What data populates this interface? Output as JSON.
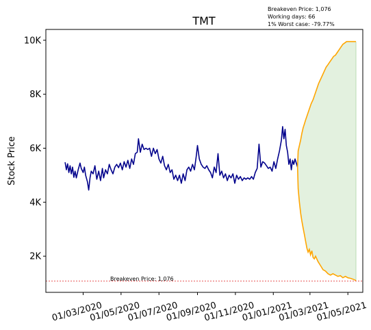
{
  "chart_data": {
    "type": "line",
    "title": "TMT",
    "ylabel": "Stock Price",
    "xlabel": "",
    "xlim": [
      "2020-01-01",
      "2021-05-25"
    ],
    "ylim": [
      660,
      10400
    ],
    "xticks": [
      {
        "date": "2020-03-01",
        "label": "01/03/2020"
      },
      {
        "date": "2020-05-01",
        "label": "01/05/2020"
      },
      {
        "date": "2020-07-01",
        "label": "01/07/2020"
      },
      {
        "date": "2020-09-01",
        "label": "01/09/2020"
      },
      {
        "date": "2020-11-01",
        "label": "01/11/2020"
      },
      {
        "date": "2021-01-01",
        "label": "01/01/2021"
      },
      {
        "date": "2021-03-01",
        "label": "01/03/2021"
      },
      {
        "date": "2021-05-01",
        "label": "01/05/2021"
      }
    ],
    "yticks": [
      {
        "value": 2000,
        "label": "2K"
      },
      {
        "value": 4000,
        "label": "4K"
      },
      {
        "value": 6000,
        "label": "6K"
      },
      {
        "value": 8000,
        "label": "8K"
      },
      {
        "value": 10000,
        "label": "10K"
      }
    ],
    "grid": false,
    "annotations": {
      "info_lines": [
        "Breakeven Price: 1,076",
        "Working days: 66",
        "1% Worst case: -79.77%"
      ],
      "breakeven_label": "Breakeven Price: 1,076"
    },
    "breakeven": 1076,
    "history": {
      "color": "#00008b",
      "points": [
        [
          "2020-02-01",
          5480
        ],
        [
          "2020-02-03",
          5200
        ],
        [
          "2020-02-05",
          5420
        ],
        [
          "2020-02-07",
          5100
        ],
        [
          "2020-02-09",
          5350
        ],
        [
          "2020-02-11",
          5050
        ],
        [
          "2020-02-13",
          5300
        ],
        [
          "2020-02-15",
          4920
        ],
        [
          "2020-02-17",
          5150
        ],
        [
          "2020-02-19",
          4900
        ],
        [
          "2020-02-22",
          5200
        ],
        [
          "2020-02-25",
          5450
        ],
        [
          "2020-02-27",
          5250
        ],
        [
          "2020-03-01",
          5100
        ],
        [
          "2020-03-03",
          5300
        ],
        [
          "2020-03-05",
          5000
        ],
        [
          "2020-03-08",
          4750
        ],
        [
          "2020-03-10",
          4450
        ],
        [
          "2020-03-12",
          4900
        ],
        [
          "2020-03-14",
          5150
        ],
        [
          "2020-03-17",
          5050
        ],
        [
          "2020-03-20",
          5350
        ],
        [
          "2020-03-23",
          4850
        ],
        [
          "2020-03-26",
          5150
        ],
        [
          "2020-03-29",
          4800
        ],
        [
          "2020-04-01",
          5250
        ],
        [
          "2020-04-03",
          4900
        ],
        [
          "2020-04-06",
          5200
        ],
        [
          "2020-04-09",
          5050
        ],
        [
          "2020-04-12",
          5400
        ],
        [
          "2020-04-15",
          5200
        ],
        [
          "2020-04-18",
          5050
        ],
        [
          "2020-04-21",
          5300
        ],
        [
          "2020-04-24",
          5400
        ],
        [
          "2020-04-27",
          5280
        ],
        [
          "2020-04-30",
          5450
        ],
        [
          "2020-05-03",
          5200
        ],
        [
          "2020-05-06",
          5500
        ],
        [
          "2020-05-09",
          5300
        ],
        [
          "2020-05-12",
          5550
        ],
        [
          "2020-05-15",
          5250
        ],
        [
          "2020-05-18",
          5600
        ],
        [
          "2020-05-21",
          5400
        ],
        [
          "2020-05-24",
          5800
        ],
        [
          "2020-05-27",
          5850
        ],
        [
          "2020-05-29",
          6350
        ],
        [
          "2020-06-01",
          5850
        ],
        [
          "2020-06-04",
          6150
        ],
        [
          "2020-06-07",
          5950
        ],
        [
          "2020-06-10",
          6000
        ],
        [
          "2020-06-13",
          5950
        ],
        [
          "2020-06-16",
          6000
        ],
        [
          "2020-06-19",
          5700
        ],
        [
          "2020-06-22",
          6000
        ],
        [
          "2020-06-25",
          5800
        ],
        [
          "2020-06-28",
          5950
        ],
        [
          "2020-07-01",
          5600
        ],
        [
          "2020-07-04",
          5450
        ],
        [
          "2020-07-07",
          5700
        ],
        [
          "2020-07-10",
          5350
        ],
        [
          "2020-07-13",
          5200
        ],
        [
          "2020-07-16",
          5400
        ],
        [
          "2020-07-19",
          5100
        ],
        [
          "2020-07-22",
          5200
        ],
        [
          "2020-07-25",
          4850
        ],
        [
          "2020-07-28",
          5000
        ],
        [
          "2020-07-31",
          4800
        ],
        [
          "2020-08-03",
          5000
        ],
        [
          "2020-08-06",
          4700
        ],
        [
          "2020-08-09",
          5050
        ],
        [
          "2020-08-12",
          4800
        ],
        [
          "2020-08-15",
          5200
        ],
        [
          "2020-08-18",
          5300
        ],
        [
          "2020-08-21",
          5150
        ],
        [
          "2020-08-24",
          5400
        ],
        [
          "2020-08-27",
          5200
        ],
        [
          "2020-08-30",
          5700
        ],
        [
          "2020-09-01",
          6100
        ],
        [
          "2020-09-04",
          5600
        ],
        [
          "2020-09-07",
          5400
        ],
        [
          "2020-09-10",
          5300
        ],
        [
          "2020-09-13",
          5250
        ],
        [
          "2020-09-16",
          5350
        ],
        [
          "2020-09-19",
          5200
        ],
        [
          "2020-09-22",
          5100
        ],
        [
          "2020-09-25",
          4900
        ],
        [
          "2020-09-28",
          5300
        ],
        [
          "2020-10-01",
          5100
        ],
        [
          "2020-10-04",
          5800
        ],
        [
          "2020-10-07",
          5000
        ],
        [
          "2020-10-10",
          5150
        ],
        [
          "2020-10-13",
          4900
        ],
        [
          "2020-10-16",
          5050
        ],
        [
          "2020-10-19",
          4800
        ],
        [
          "2020-10-22",
          5000
        ],
        [
          "2020-10-25",
          4900
        ],
        [
          "2020-10-28",
          5050
        ],
        [
          "2020-10-31",
          4700
        ],
        [
          "2020-11-03",
          5000
        ],
        [
          "2020-11-06",
          4850
        ],
        [
          "2020-11-09",
          4950
        ],
        [
          "2020-11-12",
          4800
        ],
        [
          "2020-11-15",
          4900
        ],
        [
          "2020-11-18",
          4850
        ],
        [
          "2020-11-21",
          4900
        ],
        [
          "2020-11-24",
          4850
        ],
        [
          "2020-11-27",
          4950
        ],
        [
          "2020-11-30",
          4850
        ],
        [
          "2020-12-03",
          5100
        ],
        [
          "2020-12-06",
          5250
        ],
        [
          "2020-12-09",
          6150
        ],
        [
          "2020-12-12",
          5300
        ],
        [
          "2020-12-15",
          5500
        ],
        [
          "2020-12-18",
          5450
        ],
        [
          "2020-12-21",
          5350
        ],
        [
          "2020-12-24",
          5250
        ],
        [
          "2020-12-27",
          5300
        ],
        [
          "2020-12-30",
          5150
        ],
        [
          "2021-01-02",
          5500
        ],
        [
          "2021-01-05",
          5250
        ],
        [
          "2021-01-08",
          5600
        ],
        [
          "2021-01-11",
          5900
        ],
        [
          "2021-01-14",
          6300
        ],
        [
          "2021-01-16",
          6800
        ],
        [
          "2021-01-18",
          6350
        ],
        [
          "2021-01-20",
          6700
        ],
        [
          "2021-01-22",
          6100
        ],
        [
          "2021-01-24",
          5850
        ],
        [
          "2021-01-26",
          5400
        ],
        [
          "2021-01-28",
          5600
        ],
        [
          "2021-01-30",
          5200
        ],
        [
          "2021-02-01",
          5550
        ],
        [
          "2021-02-03",
          5400
        ],
        [
          "2021-02-05",
          5600
        ],
        [
          "2021-02-07",
          5450
        ],
        [
          "2021-02-09",
          5300
        ]
      ]
    },
    "forecast": {
      "color": "#ffa500",
      "fill_color": "#d7ebd2",
      "upper": [
        [
          "2021-02-09",
          5300
        ],
        [
          "2021-02-10",
          5900
        ],
        [
          "2021-02-12",
          6100
        ],
        [
          "2021-02-14",
          6300
        ],
        [
          "2021-02-16",
          6550
        ],
        [
          "2021-02-18",
          6750
        ],
        [
          "2021-02-20",
          6900
        ],
        [
          "2021-02-22",
          7050
        ],
        [
          "2021-02-25",
          7250
        ],
        [
          "2021-02-28",
          7450
        ],
        [
          "2021-03-03",
          7650
        ],
        [
          "2021-03-06",
          7800
        ],
        [
          "2021-03-09",
          8000
        ],
        [
          "2021-03-12",
          8200
        ],
        [
          "2021-03-15",
          8400
        ],
        [
          "2021-03-18",
          8550
        ],
        [
          "2021-03-21",
          8700
        ],
        [
          "2021-03-24",
          8850
        ],
        [
          "2021-03-27",
          9000
        ],
        [
          "2021-03-30",
          9100
        ],
        [
          "2021-04-02",
          9200
        ],
        [
          "2021-04-05",
          9300
        ],
        [
          "2021-04-08",
          9400
        ],
        [
          "2021-04-11",
          9450
        ],
        [
          "2021-04-14",
          9550
        ],
        [
          "2021-04-17",
          9650
        ],
        [
          "2021-04-20",
          9750
        ],
        [
          "2021-04-23",
          9850
        ],
        [
          "2021-04-26",
          9900
        ],
        [
          "2021-04-29",
          9950
        ],
        [
          "2021-05-02",
          9950
        ],
        [
          "2021-05-05",
          9950
        ],
        [
          "2021-05-08",
          9950
        ],
        [
          "2021-05-11",
          9950
        ],
        [
          "2021-05-14",
          9950
        ]
      ],
      "lower": [
        [
          "2021-02-09",
          5300
        ],
        [
          "2021-02-10",
          4500
        ],
        [
          "2021-02-12",
          4000
        ],
        [
          "2021-02-14",
          3600
        ],
        [
          "2021-02-16",
          3300
        ],
        [
          "2021-02-18",
          3050
        ],
        [
          "2021-02-20",
          2800
        ],
        [
          "2021-02-22",
          2550
        ],
        [
          "2021-02-24",
          2300
        ],
        [
          "2021-02-26",
          2150
        ],
        [
          "2021-02-28",
          2250
        ],
        [
          "2021-03-02",
          2050
        ],
        [
          "2021-03-04",
          2200
        ],
        [
          "2021-03-06",
          1950
        ],
        [
          "2021-03-08",
          1900
        ],
        [
          "2021-03-10",
          2000
        ],
        [
          "2021-03-14",
          1800
        ],
        [
          "2021-03-18",
          1650
        ],
        [
          "2021-03-22",
          1500
        ],
        [
          "2021-03-26",
          1450
        ],
        [
          "2021-03-30",
          1350
        ],
        [
          "2021-04-03",
          1300
        ],
        [
          "2021-04-07",
          1350
        ],
        [
          "2021-04-11",
          1300
        ],
        [
          "2021-04-15",
          1250
        ],
        [
          "2021-04-19",
          1280
        ],
        [
          "2021-04-23",
          1200
        ],
        [
          "2021-04-27",
          1250
        ],
        [
          "2021-05-01",
          1200
        ],
        [
          "2021-05-05",
          1180
        ],
        [
          "2021-05-09",
          1150
        ],
        [
          "2021-05-14",
          1100
        ]
      ]
    }
  }
}
